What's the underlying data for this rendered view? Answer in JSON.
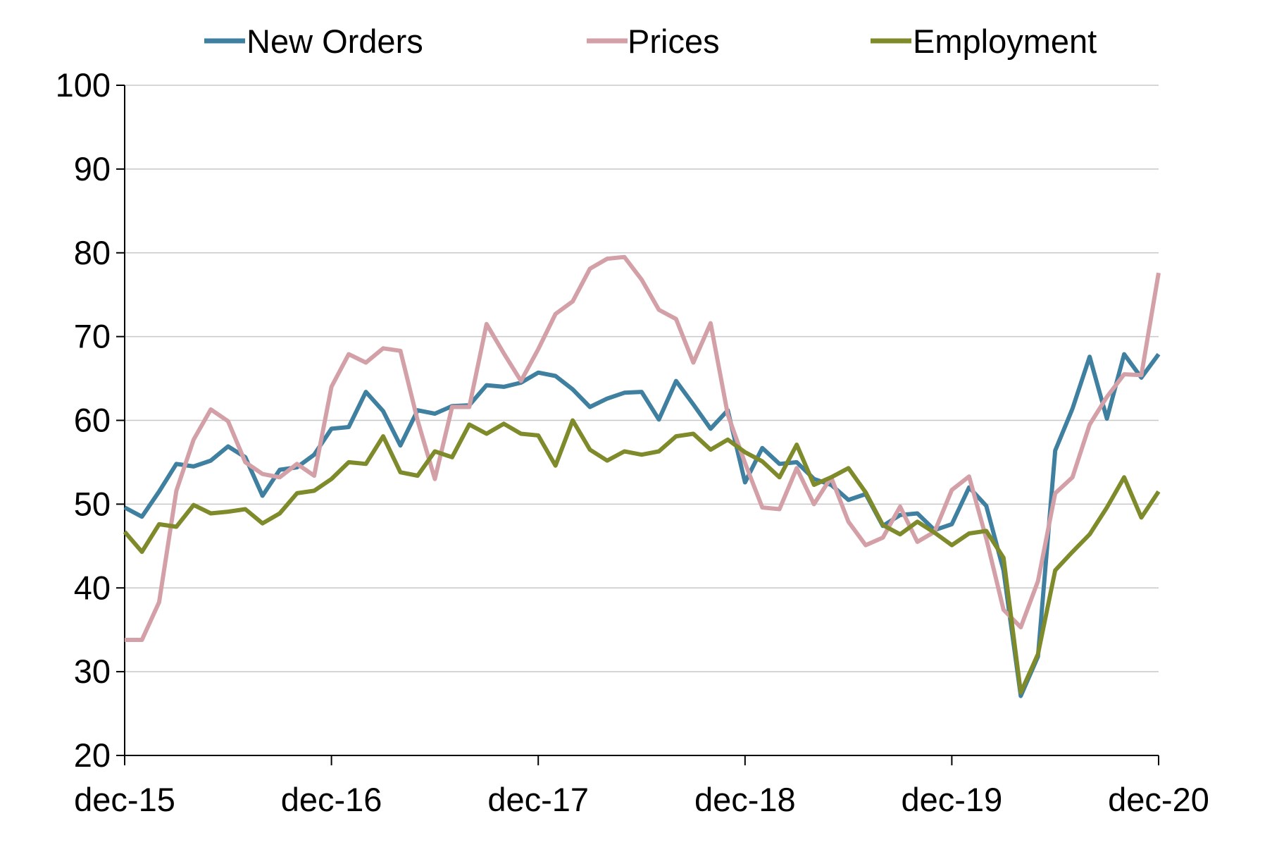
{
  "chart_data": {
    "type": "line",
    "title": "",
    "xlabel": "",
    "ylabel": "",
    "ylim": [
      20,
      100
    ],
    "yticks": [
      20,
      30,
      40,
      50,
      60,
      70,
      80,
      90,
      100
    ],
    "ytick_labels": [
      "20",
      "30",
      "40",
      "50",
      "60",
      "70",
      "80",
      "90",
      "100"
    ],
    "xlim": [
      "2015-12",
      "2020-12"
    ],
    "xtick_labels": [
      "dec-15",
      "dec-16",
      "dec-17",
      "dec-18",
      "dec-19",
      "dec-20"
    ],
    "xtick_dates": [
      "2015-12",
      "2016-12",
      "2017-12",
      "2018-12",
      "2019-12",
      "2020-12"
    ],
    "grid": true,
    "legend_position": "top",
    "x": [
      "2015-12",
      "2016-01",
      "2016-02",
      "2016-03",
      "2016-04",
      "2016-05",
      "2016-06",
      "2016-07",
      "2016-08",
      "2016-09",
      "2016-10",
      "2016-11",
      "2016-12",
      "2017-01",
      "2017-02",
      "2017-03",
      "2017-04",
      "2017-05",
      "2017-06",
      "2017-07",
      "2017-08",
      "2017-09",
      "2017-10",
      "2017-11",
      "2017-12",
      "2018-01",
      "2018-02",
      "2018-03",
      "2018-04",
      "2018-05",
      "2018-06",
      "2018-07",
      "2018-08",
      "2018-09",
      "2018-10",
      "2018-11",
      "2018-12",
      "2019-01",
      "2019-02",
      "2019-03",
      "2019-04",
      "2019-05",
      "2019-06",
      "2019-07",
      "2019-08",
      "2019-09",
      "2019-10",
      "2019-11",
      "2019-12",
      "2020-01",
      "2020-02",
      "2020-03",
      "2020-04",
      "2020-05",
      "2020-06",
      "2020-07",
      "2020-08",
      "2020-09",
      "2020-10",
      "2020-11",
      "2020-12"
    ],
    "series": [
      {
        "name": "New Orders",
        "color": "#3f7fa0",
        "values": [
          49.6,
          48.5,
          51.5,
          54.8,
          54.5,
          55.2,
          56.9,
          55.6,
          51.0,
          54.1,
          54.4,
          55.9,
          59.0,
          59.2,
          63.4,
          61.1,
          57.0,
          61.2,
          60.8,
          61.7,
          61.8,
          64.2,
          64.0,
          64.5,
          65.7,
          65.3,
          63.7,
          61.6,
          62.6,
          63.3,
          63.4,
          60.1,
          64.7,
          61.9,
          59.0,
          61.2,
          52.6,
          56.7,
          54.8,
          55.0,
          53.0,
          52.3,
          50.5,
          51.2,
          47.4,
          48.7,
          48.9,
          46.9,
          47.6,
          52.0,
          49.8,
          42.1,
          27.1,
          31.8,
          56.4,
          61.4,
          67.6,
          60.2,
          67.9,
          65.1,
          67.9
        ]
      },
      {
        "name": "Prices",
        "color": "#d4a0a8",
        "values": [
          33.8,
          33.8,
          38.3,
          51.6,
          57.7,
          61.3,
          59.9,
          55.0,
          53.6,
          53.2,
          54.8,
          53.4,
          64.0,
          67.9,
          66.9,
          68.6,
          68.3,
          60.0,
          53.0,
          61.6,
          61.6,
          71.5,
          68.0,
          64.7,
          68.5,
          72.7,
          74.2,
          78.1,
          79.3,
          79.5,
          76.8,
          73.2,
          72.1,
          66.9,
          71.6,
          60.7,
          54.9,
          49.6,
          49.4,
          54.3,
          50.0,
          53.2,
          47.9,
          45.1,
          46.0,
          49.7,
          45.5,
          46.7,
          51.7,
          53.3,
          45.9,
          37.4,
          35.3,
          40.8,
          51.3,
          53.2,
          59.5,
          62.8,
          65.5,
          65.4,
          77.6
        ]
      },
      {
        "name": "Employment",
        "color": "#7f8a2a",
        "values": [
          46.7,
          44.3,
          47.6,
          47.3,
          49.9,
          48.9,
          49.1,
          49.4,
          47.7,
          48.9,
          51.3,
          51.6,
          53.0,
          55.0,
          54.8,
          58.1,
          53.8,
          53.4,
          56.3,
          55.6,
          59.5,
          58.4,
          59.6,
          58.4,
          58.2,
          54.6,
          60.0,
          56.5,
          55.2,
          56.3,
          55.9,
          56.3,
          58.1,
          58.4,
          56.5,
          57.7,
          56.2,
          55.1,
          53.2,
          57.1,
          52.3,
          53.2,
          54.3,
          51.4,
          47.5,
          46.4,
          47.9,
          46.6,
          45.1,
          46.5,
          46.8,
          43.6,
          27.5,
          32.1,
          42.1,
          44.3,
          46.4,
          49.6,
          53.2,
          48.4,
          51.5
        ]
      }
    ]
  }
}
